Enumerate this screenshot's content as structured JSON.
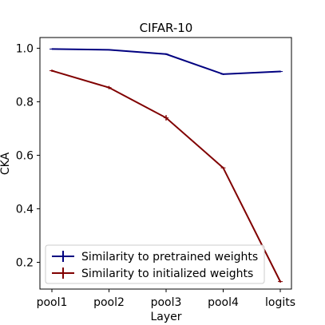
{
  "chart_data": {
    "type": "line",
    "title": "CIFAR-10",
    "xlabel": "Layer",
    "ylabel": "CKA",
    "categories": [
      "pool1",
      "pool2",
      "pool3",
      "pool4",
      "logits"
    ],
    "ylim": [
      0.1,
      1.04
    ],
    "yticks": [
      0.2,
      0.4,
      0.6,
      0.8,
      1.0
    ],
    "ytick_labels": [
      "0.2",
      "0.4",
      "0.6",
      "0.8",
      "1.0"
    ],
    "grid": false,
    "legend_position": "lower-left",
    "series": [
      {
        "name": "Similarity to pretrained weights",
        "values": [
          0.997,
          0.994,
          0.978,
          0.903,
          0.913
        ],
        "errors": [
          0.002,
          0.002,
          0.003,
          0.003,
          0.003
        ],
        "color": "#000080"
      },
      {
        "name": "Similarity to initialized weights",
        "values": [
          0.916,
          0.853,
          0.74,
          0.553,
          0.128
        ],
        "errors": [
          0.004,
          0.006,
          0.01,
          0.004,
          0.004
        ],
        "color": "#800000"
      }
    ]
  }
}
